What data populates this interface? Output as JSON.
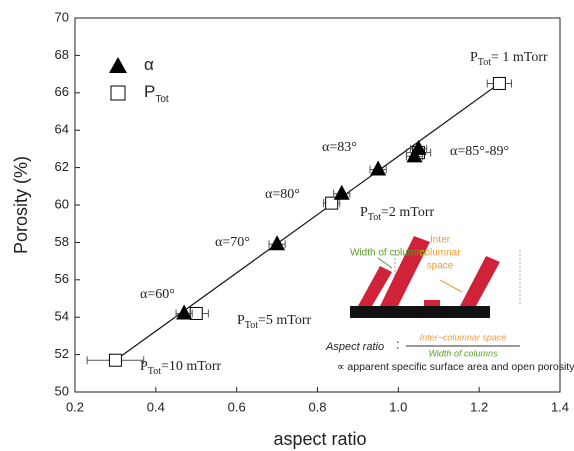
{
  "chart_data": {
    "type": "scatter",
    "x_label": "aspect ratio",
    "y_label": "Porosity (%)",
    "xlim": [
      0.2,
      1.4
    ],
    "ylim": [
      50,
      70
    ],
    "xticks": [
      0.2,
      0.4,
      0.6,
      0.8,
      {
        "value": 1,
        "label": "1.0"
      },
      1.2,
      1.4
    ],
    "yticks": [
      50,
      52,
      54,
      56,
      58,
      60,
      62,
      64,
      66,
      68,
      70
    ],
    "series": [
      {
        "name": "α",
        "marker": "triangle",
        "color": "#000000",
        "x": [
          0.47,
          0.7,
          0.86,
          0.95,
          1.04,
          1.05
        ],
        "values": [
          54.2,
          57.9,
          60.6,
          61.9,
          62.6,
          63.0
        ],
        "x_err": [
          0.02,
          0.02,
          0.02,
          0.02,
          0.02,
          0.02
        ]
      },
      {
        "name": "P",
        "name_sub": "Tot",
        "marker": "square",
        "color": "#000000",
        "x": [
          0.3,
          0.5,
          0.835,
          1.05,
          1.25
        ],
        "values": [
          51.7,
          54.2,
          60.1,
          62.8,
          66.5
        ],
        "x_err": [
          0.07,
          0.03,
          0.02,
          0.03,
          0.03
        ]
      }
    ],
    "fit": {
      "x": [
        0.3,
        1.25
      ],
      "values": [
        51.7,
        66.5
      ]
    },
    "annotations": [
      {
        "text": "α=83°"
      },
      {
        "text": "α=85°-89°"
      },
      {
        "text": "α=80°"
      },
      {
        "text": "α=70°"
      },
      {
        "text": "α=60°"
      },
      {
        "text": "P",
        "sub": "Tot",
        "rest": "= 1 mTorr"
      },
      {
        "text": "P",
        "sub": "Tot",
        "rest": "=2 mTorr"
      },
      {
        "text": "P",
        "sub": "Tot",
        "rest": "=5 mTorr"
      },
      {
        "text": "P",
        "sub": "Tot",
        "rest": "=10 mTorr"
      }
    ],
    "inset": {
      "width_label": "Width of columns",
      "space_label": [
        "Inter",
        "columnar",
        "space"
      ],
      "ratio_label": "Aspect ratio",
      "colon": ":",
      "numerator": "Inter−columnar space",
      "denominator": "Width of columns",
      "note": "∝ apparent specific surface area and open porosity"
    }
  }
}
